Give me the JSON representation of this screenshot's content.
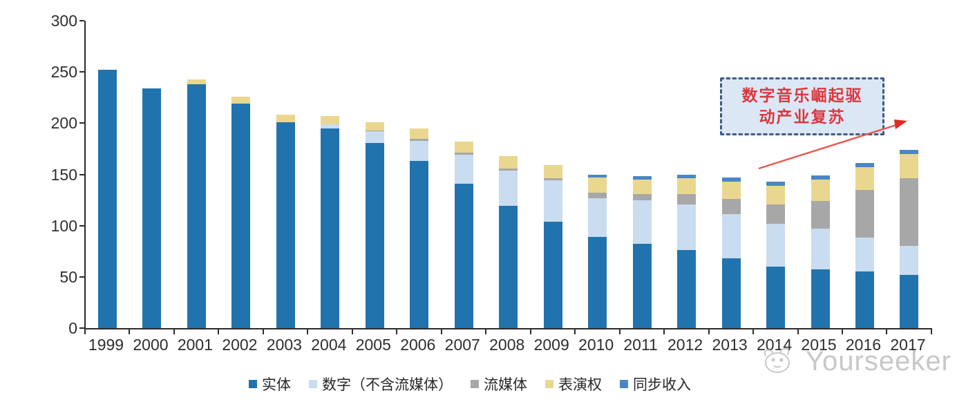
{
  "chart_data": {
    "type": "bar",
    "stacked": true,
    "title": "",
    "xlabel": "",
    "ylabel": "",
    "categories": [
      "1999",
      "2000",
      "2001",
      "2002",
      "2003",
      "2004",
      "2005",
      "2006",
      "2007",
      "2008",
      "2009",
      "2010",
      "2011",
      "2012",
      "2013",
      "2014",
      "2015",
      "2016",
      "2017"
    ],
    "series": [
      {
        "name": "实体",
        "color": "#2173ad",
        "values": [
          252,
          234,
          238,
          219,
          201,
          195,
          181,
          163,
          141,
          119,
          104,
          89,
          82,
          76,
          68,
          60,
          57,
          55,
          52
        ]
      },
      {
        "name": "数字（不含流媒体）",
        "color": "#c9dcf0",
        "values": [
          0,
          0,
          0,
          0,
          0,
          4,
          11,
          20,
          28,
          35,
          40,
          38,
          43,
          45,
          43,
          42,
          40,
          33,
          28
        ]
      },
      {
        "name": "流媒体",
        "color": "#a7a7a7",
        "values": [
          0,
          0,
          0,
          0,
          0,
          0,
          1,
          2,
          2,
          2,
          2,
          5,
          6,
          10,
          15,
          19,
          27,
          47,
          66
        ]
      },
      {
        "name": "表演权",
        "color": "#e9d78f",
        "values": [
          0,
          0,
          5,
          7,
          7,
          8,
          8,
          10,
          11,
          12,
          13,
          15,
          14,
          15,
          17,
          18,
          21,
          22,
          24
        ]
      },
      {
        "name": "同步收入",
        "color": "#4a86c5",
        "values": [
          0,
          0,
          0,
          0,
          0,
          0,
          0,
          0,
          0,
          0,
          0,
          3,
          3,
          4,
          4,
          4,
          4,
          4,
          4
        ]
      }
    ],
    "ylim": [
      0,
      300
    ],
    "yticks": [
      0,
      50,
      100,
      150,
      200,
      250,
      300
    ],
    "grid": false,
    "legend_position": "bottom"
  },
  "annotation": {
    "line1": "数字音乐崛起驱",
    "line2": "动产业复苏"
  },
  "watermark": {
    "text": "Yourseeker"
  },
  "colors": {
    "annotation_border": "#3d5a85",
    "annotation_fill": "#dce7f5",
    "annotation_text": "#d9383e",
    "arrow": "#e8564f",
    "axis": "#2b2b2b",
    "watermark": "#c7c7c7"
  }
}
